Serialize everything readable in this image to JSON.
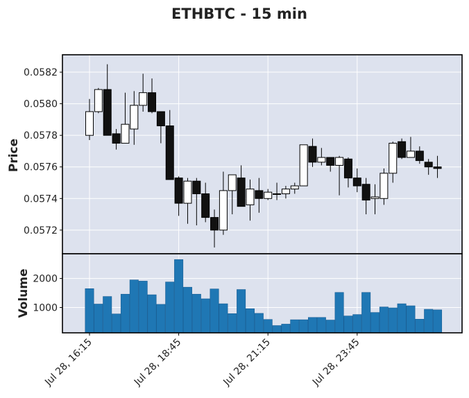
{
  "chart_data": {
    "type": "candlestick",
    "title": "ETHBTC - 15 min",
    "price_panel": {
      "ylabel": "Price",
      "ylim": [
        0.05705,
        0.05831
      ],
      "yticks": [
        "0.0572",
        "0.0574",
        "0.0576",
        "0.0578",
        "0.0580",
        "0.0582"
      ]
    },
    "volume_panel": {
      "ylabel": "Volume",
      "ylim": [
        130,
        2850
      ],
      "yticks": [
        "1000",
        "2000"
      ]
    },
    "xticks": [
      {
        "index": 0,
        "label": "Jul 28, 16:15"
      },
      {
        "index": 10,
        "label": "Jul 28, 18:45"
      },
      {
        "index": 20,
        "label": "Jul 28, 21:15"
      },
      {
        "index": 30,
        "label": "Jul 28, 23:45"
      }
    ],
    "grid": true,
    "colors": {
      "up": "#ffffff",
      "down": "#111111",
      "volume": "#1f77b4",
      "panel": "#dde2ee"
    },
    "candles": [
      {
        "o": 0.0578,
        "h": 0.05803,
        "l": 0.05777,
        "c": 0.05795,
        "v": 1650
      },
      {
        "o": 0.05795,
        "h": 0.0581,
        "l": 0.05794,
        "c": 0.05809,
        "v": 1120
      },
      {
        "o": 0.05809,
        "h": 0.05825,
        "l": 0.0578,
        "c": 0.0578,
        "v": 1380
      },
      {
        "o": 0.05781,
        "h": 0.05784,
        "l": 0.05771,
        "c": 0.05775,
        "v": 780
      },
      {
        "o": 0.05775,
        "h": 0.05807,
        "l": 0.05775,
        "c": 0.05787,
        "v": 1460
      },
      {
        "o": 0.05784,
        "h": 0.05808,
        "l": 0.05774,
        "c": 0.05799,
        "v": 1950
      },
      {
        "o": 0.05799,
        "h": 0.05819,
        "l": 0.05795,
        "c": 0.05807,
        "v": 1910
      },
      {
        "o": 0.05807,
        "h": 0.05816,
        "l": 0.05794,
        "c": 0.05795,
        "v": 1440
      },
      {
        "o": 0.05795,
        "h": 0.05795,
        "l": 0.05775,
        "c": 0.05786,
        "v": 1110
      },
      {
        "o": 0.05786,
        "h": 0.05796,
        "l": 0.05752,
        "c": 0.05752,
        "v": 1880
      },
      {
        "o": 0.05753,
        "h": 0.05754,
        "l": 0.05729,
        "c": 0.05737,
        "v": 2650
      },
      {
        "o": 0.05737,
        "h": 0.05753,
        "l": 0.05724,
        "c": 0.05751,
        "v": 1700
      },
      {
        "o": 0.05751,
        "h": 0.05753,
        "l": 0.05723,
        "c": 0.05743,
        "v": 1460
      },
      {
        "o": 0.05743,
        "h": 0.0575,
        "l": 0.05725,
        "c": 0.05728,
        "v": 1300
      },
      {
        "o": 0.05728,
        "h": 0.05733,
        "l": 0.05709,
        "c": 0.0572,
        "v": 1640
      },
      {
        "o": 0.0572,
        "h": 0.05757,
        "l": 0.05717,
        "c": 0.05745,
        "v": 1130
      },
      {
        "o": 0.05745,
        "h": 0.05755,
        "l": 0.0573,
        "c": 0.05755,
        "v": 790
      },
      {
        "o": 0.05753,
        "h": 0.05761,
        "l": 0.05735,
        "c": 0.05735,
        "v": 1620
      },
      {
        "o": 0.05736,
        "h": 0.05752,
        "l": 0.05726,
        "c": 0.05746,
        "v": 960
      },
      {
        "o": 0.05745,
        "h": 0.05753,
        "l": 0.05731,
        "c": 0.0574,
        "v": 800
      },
      {
        "o": 0.0574,
        "h": 0.05746,
        "l": 0.05739,
        "c": 0.05744,
        "v": 590
      },
      {
        "o": 0.05743,
        "h": 0.0575,
        "l": 0.05739,
        "c": 0.05743,
        "v": 380
      },
      {
        "o": 0.05743,
        "h": 0.05748,
        "l": 0.0574,
        "c": 0.05746,
        "v": 430
      },
      {
        "o": 0.05746,
        "h": 0.0575,
        "l": 0.05743,
        "c": 0.05748,
        "v": 580
      },
      {
        "o": 0.05748,
        "h": 0.05773,
        "l": 0.05748,
        "c": 0.05774,
        "v": 580
      },
      {
        "o": 0.05773,
        "h": 0.05778,
        "l": 0.0576,
        "c": 0.05763,
        "v": 660
      },
      {
        "o": 0.05763,
        "h": 0.05772,
        "l": 0.05761,
        "c": 0.05766,
        "v": 660
      },
      {
        "o": 0.05766,
        "h": 0.05766,
        "l": 0.05757,
        "c": 0.05761,
        "v": 570
      },
      {
        "o": 0.05761,
        "h": 0.05767,
        "l": 0.05742,
        "c": 0.05766,
        "v": 1520
      },
      {
        "o": 0.05765,
        "h": 0.05766,
        "l": 0.05747,
        "c": 0.05753,
        "v": 710
      },
      {
        "o": 0.05753,
        "h": 0.05759,
        "l": 0.05744,
        "c": 0.05748,
        "v": 760
      },
      {
        "o": 0.05749,
        "h": 0.05753,
        "l": 0.0573,
        "c": 0.05739,
        "v": 1520
      },
      {
        "o": 0.0574,
        "h": 0.05749,
        "l": 0.0573,
        "c": 0.05741,
        "v": 830
      },
      {
        "o": 0.0574,
        "h": 0.05759,
        "l": 0.05736,
        "c": 0.05756,
        "v": 1020
      },
      {
        "o": 0.05756,
        "h": 0.05776,
        "l": 0.0575,
        "c": 0.05775,
        "v": 990
      },
      {
        "o": 0.05776,
        "h": 0.05778,
        "l": 0.05765,
        "c": 0.05766,
        "v": 1130
      },
      {
        "o": 0.05766,
        "h": 0.05779,
        "l": 0.05766,
        "c": 0.0577,
        "v": 1060
      },
      {
        "o": 0.0577,
        "h": 0.05773,
        "l": 0.05762,
        "c": 0.05764,
        "v": 600
      },
      {
        "o": 0.05763,
        "h": 0.05765,
        "l": 0.05755,
        "c": 0.0576,
        "v": 940
      },
      {
        "o": 0.0576,
        "h": 0.05767,
        "l": 0.05753,
        "c": 0.05759,
        "v": 920
      }
    ]
  }
}
